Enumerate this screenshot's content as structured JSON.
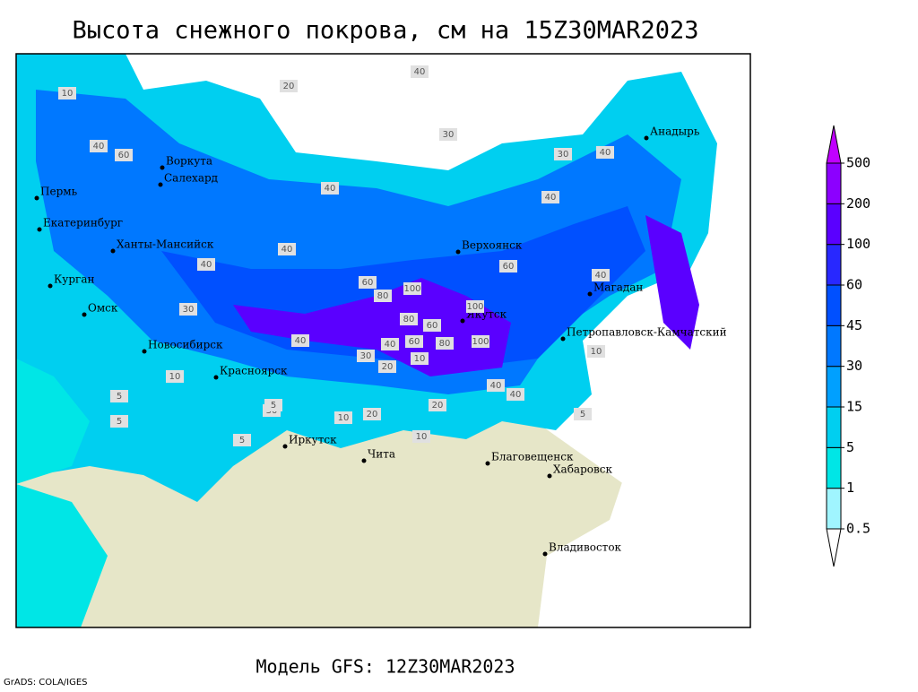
{
  "header": {
    "title": "Высота снежного покрова, см на 15Z30MAR2023"
  },
  "footer": {
    "model": "Модель GFS: 12Z30MAR2023",
    "credit": "GrADS: COLA/IGES"
  },
  "colorbar": {
    "levels": [
      0.5,
      1,
      5,
      15,
      30,
      45,
      60,
      100,
      200,
      500
    ],
    "colors": [
      "#ffffff",
      "#a0f5ff",
      "#00e6e6",
      "#00cff0",
      "#00a0ff",
      "#0078ff",
      "#0050ff",
      "#2828ff",
      "#5a00ff",
      "#8c00ff",
      "#c000ff"
    ]
  },
  "map": {
    "cities": [
      "Воркута",
      "Салехард",
      "Пермь",
      "Екатеринбург",
      "Ханты-Мансийск",
      "Курган",
      "Омск",
      "Новосибирск",
      "Красноярск",
      "Иркутск",
      "Чита",
      "Благовещенск",
      "Хабаровск",
      "Владивосток",
      "Верхоянск",
      "Якутск",
      "Магадан",
      "Петропавловск-Камчатский",
      "Анадырь"
    ],
    "contour_labels": [
      "10",
      "20",
      "40",
      "30",
      "30",
      "40",
      "60",
      "40",
      "40",
      "40",
      "40",
      "60",
      "80",
      "100",
      "100",
      "80",
      "60",
      "100",
      "80",
      "60",
      "40",
      "40",
      "30",
      "20",
      "10",
      "10",
      "20",
      "20",
      "40",
      "30",
      "40",
      "40",
      "10",
      "5",
      "5",
      "5",
      "5",
      "10",
      "40",
      "60",
      "30",
      "10",
      "5"
    ]
  }
}
